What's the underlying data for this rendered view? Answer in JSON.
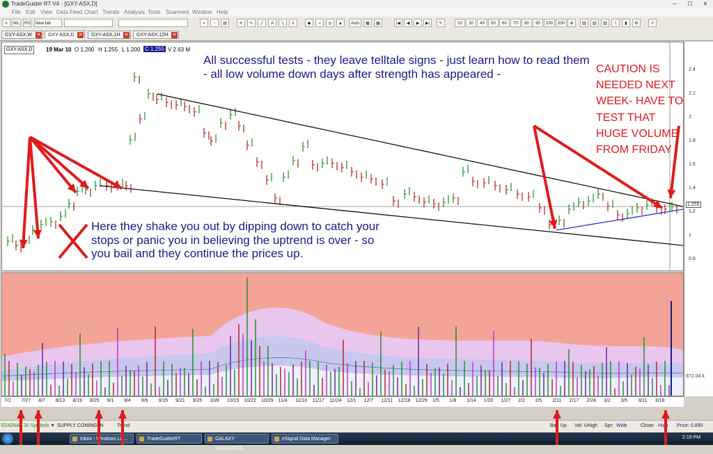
{
  "window": {
    "title": "TradeGuider RT V4 - [GXY-ASX,D]",
    "minimize": "─",
    "maximize": "☐",
    "close": "✕"
  },
  "menu": [
    "File",
    "Edit",
    "View",
    "Data Feed",
    "Chart",
    "Trends",
    "Analysis",
    "Tools",
    "Scanners",
    "Window",
    "Help"
  ],
  "toolbar": {
    "wl": "WL",
    "rs": "RS",
    "new_tab": "New tab",
    "auto": "Auto",
    "zoom_levels": [
      "20",
      "30",
      "40",
      "50",
      "60",
      "70",
      "80",
      "90",
      "100",
      "200"
    ]
  },
  "tabs": [
    {
      "label": "GXY-ASX,W"
    },
    {
      "label": "GXY-ASX,D"
    },
    {
      "label": "GXY-ASX,1H"
    },
    {
      "label": "GXY-ASX,12H"
    }
  ],
  "chart_header": {
    "ticker": "GXY-ASX,D",
    "date": "19 Mar 10",
    "open": "O 1.200",
    "high": "H 1.255",
    "low": "L 1.200",
    "close": "C 1.255",
    "volume": "V 2.63 M"
  },
  "annotations": {
    "top": "All successful tests - they leave telltale signs - just learn how to read them - all low volume down days after strength has appeared -",
    "shakeout": "Here they shake you out by dipping down to catch your stops or panic you in believing the uptrend is over - so you bail and they continue the prices up.",
    "caution": "CAUTION IS NEEDED NEXT WEEK- HAVE TO TEST THAT HUGE VOLUME FROM FRIDAY"
  },
  "price_axis": [
    "2.4",
    "2.2",
    "2",
    "1.8",
    "1.6",
    "1.4",
    "1.2",
    "1",
    "0.8"
  ],
  "price_marker": "1.255",
  "volume_marker": "672.04 k",
  "date_axis": [
    "7/2",
    "7/27",
    "8/7",
    "8/13",
    "8/19",
    "8/25",
    "9/1",
    "9/4",
    "9/9",
    "9/15",
    "9/21",
    "9/25",
    "10/8",
    "10/15",
    "10/22",
    "10/29",
    "11/4",
    "11/10",
    "11/17",
    "11/24",
    "12/1",
    "12/7",
    "12/11",
    "12/18",
    "12/29",
    "1/5",
    "1/8",
    "1/14",
    "1/20",
    "1/27",
    "2/2",
    "2/5",
    "2/11",
    "2/17",
    "2/24",
    "3/2",
    "3/5",
    "3/11",
    "3/18"
  ],
  "status": {
    "esignal": "ESIGNAL 30 Symbols",
    "signal": "SUPPLY COMING IN",
    "trend": "Trend",
    "bar": "Bar: Up",
    "vol": "Vol: UHigh",
    "spr_label": "Spr:",
    "spr_value": "Wide",
    "close_label": "Close:",
    "close_value": "High",
    "price": "Price: 0.890"
  },
  "taskbar": {
    "items": [
      "Inbox - Windows Liv...",
      "TradeGuiderRT",
      "GALAXY RESOURCE...",
      "eSignal Data Manager"
    ],
    "clock": "2:19 PM"
  },
  "colors": {
    "up_bar": "#1a8a1a",
    "down_bar": "#b01a1a",
    "trendline_blue": "#2a2ad0",
    "arrow_red": "#e01a1a",
    "volume_bg": "#f4a496"
  }
}
